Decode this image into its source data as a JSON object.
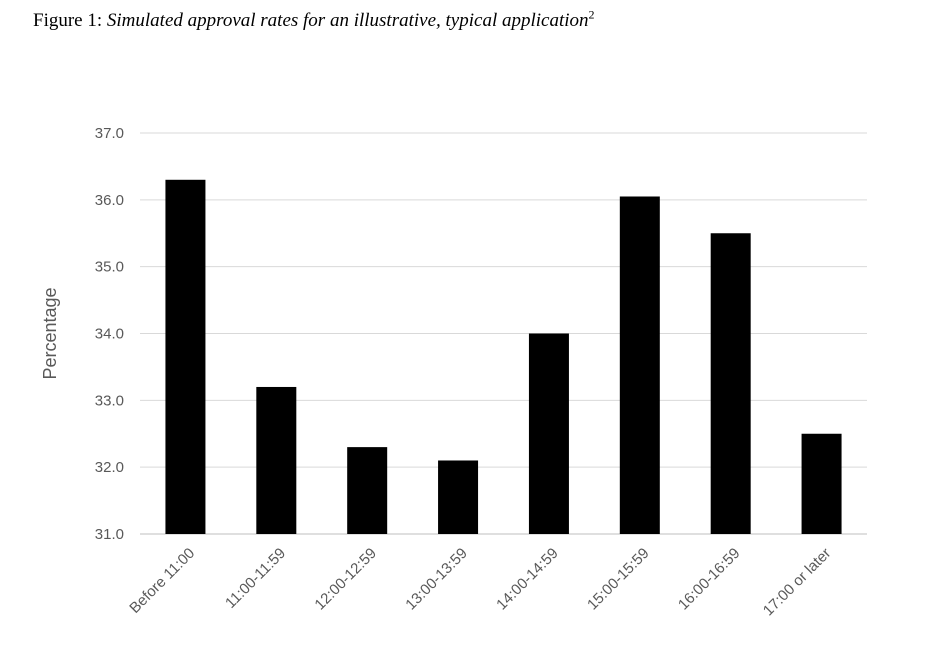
{
  "figure": {
    "label": "Figure 1:",
    "title": "Simulated approval rates for an illustrative, typical application",
    "footnote": "2"
  },
  "chart_data": {
    "type": "bar",
    "categories": [
      "Before 11:00",
      "11:00-11:59",
      "12:00-12:59",
      "13:00-13:59",
      "14:00-14:59",
      "15:00-15:59",
      "16:00-16:59",
      "17:00 or later"
    ],
    "values": [
      36.3,
      33.2,
      32.3,
      32.1,
      34.0,
      36.05,
      35.5,
      32.5
    ],
    "ylabel": "Percentage",
    "xlabel": "",
    "ylim": [
      31.0,
      37.0
    ],
    "yticks": [
      "31.0",
      "32.0",
      "33.0",
      "34.0",
      "35.0",
      "36.0",
      "37.0"
    ],
    "grid": true,
    "bar_color": "#000000",
    "grid_color": "#d9d9d9"
  }
}
